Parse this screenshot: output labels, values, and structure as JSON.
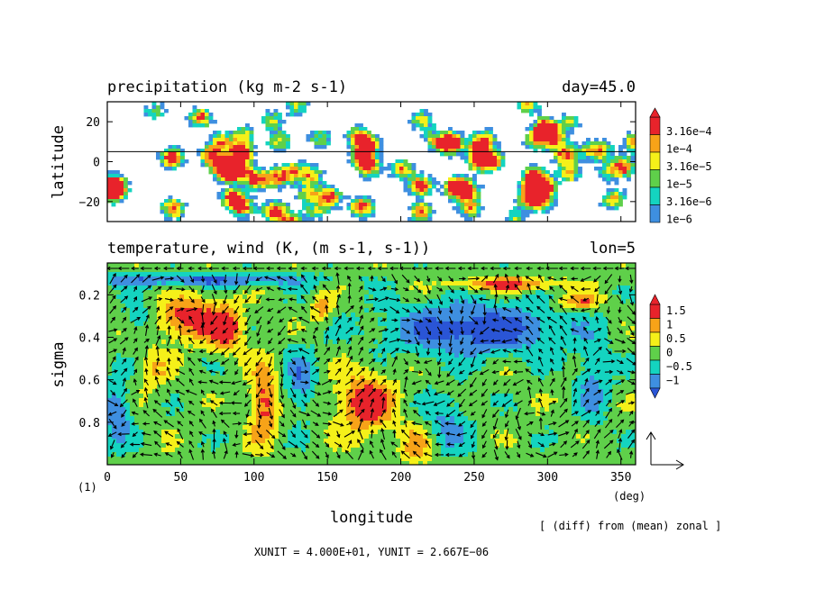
{
  "chart_data": [
    {
      "type": "heatmap",
      "title": "precipitation (kg m-2 s-1)",
      "title_right": "day=45.0",
      "xlabel": "",
      "ylabel": "latitude",
      "xlim": [
        0,
        360
      ],
      "ylim": [
        -30,
        30
      ],
      "x_ticks": [],
      "y_ticks": [
        "20",
        "0",
        "−20"
      ],
      "y_tick_values": [
        20,
        0,
        -20
      ],
      "zero_line": 5,
      "colorbar": {
        "labels": [
          "3.16e−4",
          "1e−4",
          "3.16e−5",
          "1e−5",
          "3.16e−6",
          "1e−6"
        ],
        "colors": [
          "#e8232b",
          "#f7a318",
          "#f5f019",
          "#5fd04a",
          "#14d4c0",
          "#3e8fe0"
        ]
      }
    },
    {
      "type": "heatmap",
      "title": "temperature, wind (K, (m s-1, s-1))",
      "title_right": "lon=5",
      "xlabel": "longitude",
      "ylabel": "sigma",
      "xlim": [
        0,
        360
      ],
      "ylim": [
        1.0,
        0.05
      ],
      "x_ticks": [
        "0",
        "50",
        "100",
        "150",
        "200",
        "250",
        "300",
        "350"
      ],
      "x_tick_values": [
        0,
        50,
        100,
        150,
        200,
        250,
        300,
        350
      ],
      "x_unit": "(deg)",
      "y_ticks": [
        "0.2",
        "0.4",
        "0.6",
        "0.8"
      ],
      "y_tick_values": [
        0.2,
        0.4,
        0.6,
        0.8
      ],
      "colorbar": {
        "labels": [
          "1.5",
          "1",
          "0.5",
          "0",
          "−0.5",
          "−1"
        ],
        "colors": [
          "#e8232b",
          "#f7a318",
          "#f5f019",
          "#5fd04a",
          "#14d4c0",
          "#3e8fe0",
          "#2a55d6"
        ]
      }
    }
  ],
  "figure_label": "(1)",
  "note": "[ (diff) from (mean) zonal ]",
  "units": "XUNIT = 4.000E+01, YUNIT = 2.667E−06"
}
